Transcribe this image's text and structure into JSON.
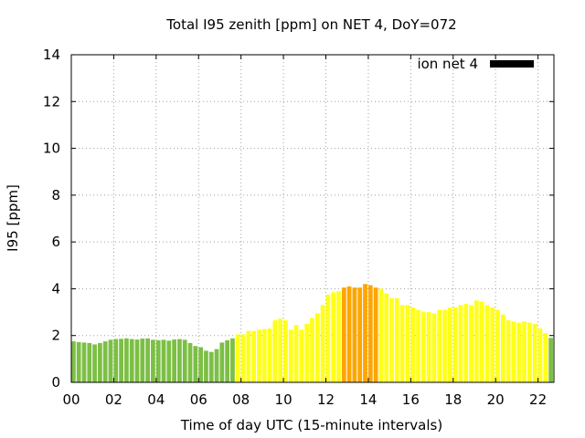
{
  "chart_data": {
    "type": "bar",
    "title": "Total I95 zenith [ppm] on NET 4, DoY=072",
    "xlabel": "Time of day UTC (15-minute intervals)",
    "ylabel": "I95 [ppm]",
    "xlim": [
      0,
      22.75
    ],
    "ylim": [
      0,
      14
    ],
    "x_ticks": [
      {
        "v": 0,
        "label": "00"
      },
      {
        "v": 2,
        "label": "02"
      },
      {
        "v": 4,
        "label": "04"
      },
      {
        "v": 6,
        "label": "06"
      },
      {
        "v": 8,
        "label": "08"
      },
      {
        "v": 10,
        "label": "10"
      },
      {
        "v": 12,
        "label": "12"
      },
      {
        "v": 14,
        "label": "14"
      },
      {
        "v": 16,
        "label": "16"
      },
      {
        "v": 18,
        "label": "18"
      },
      {
        "v": 20,
        "label": "20"
      },
      {
        "v": 22,
        "label": "22"
      }
    ],
    "y_ticks": [
      {
        "v": 0,
        "label": "0"
      },
      {
        "v": 2,
        "label": "2"
      },
      {
        "v": 4,
        "label": "4"
      },
      {
        "v": 6,
        "label": "6"
      },
      {
        "v": 8,
        "label": "8"
      },
      {
        "v": 10,
        "label": "10"
      },
      {
        "v": 12,
        "label": "12"
      },
      {
        "v": 14,
        "label": "14"
      }
    ],
    "grid": true,
    "legend": {
      "position": "top-right",
      "entries": [
        {
          "label": "ion net 4",
          "color": "#000000"
        }
      ]
    },
    "color_classes": {
      "green": "#7cbf45",
      "yellow": "#ffff1a",
      "orange": "#ffa500"
    },
    "bar_interval_hours": 0.25,
    "series": [
      {
        "name": "ion net 4",
        "values": [
          [
            0.0,
            1.75,
            "green"
          ],
          [
            0.25,
            1.72,
            "green"
          ],
          [
            0.5,
            1.7,
            "green"
          ],
          [
            0.75,
            1.68,
            "green"
          ],
          [
            1.0,
            1.62,
            "green"
          ],
          [
            1.25,
            1.68,
            "green"
          ],
          [
            1.5,
            1.75,
            "green"
          ],
          [
            1.75,
            1.82,
            "green"
          ],
          [
            2.0,
            1.85,
            "green"
          ],
          [
            2.25,
            1.86,
            "green"
          ],
          [
            2.5,
            1.88,
            "green"
          ],
          [
            2.75,
            1.85,
            "green"
          ],
          [
            3.0,
            1.83,
            "green"
          ],
          [
            3.25,
            1.87,
            "green"
          ],
          [
            3.5,
            1.88,
            "green"
          ],
          [
            3.75,
            1.82,
            "green"
          ],
          [
            4.0,
            1.8,
            "green"
          ],
          [
            4.25,
            1.82,
            "green"
          ],
          [
            4.5,
            1.78,
            "green"
          ],
          [
            4.75,
            1.83,
            "green"
          ],
          [
            5.0,
            1.85,
            "green"
          ],
          [
            5.25,
            1.82,
            "green"
          ],
          [
            5.5,
            1.68,
            "green"
          ],
          [
            5.75,
            1.55,
            "green"
          ],
          [
            6.0,
            1.5,
            "green"
          ],
          [
            6.25,
            1.35,
            "green"
          ],
          [
            6.5,
            1.3,
            "green"
          ],
          [
            6.75,
            1.42,
            "green"
          ],
          [
            7.0,
            1.7,
            "green"
          ],
          [
            7.25,
            1.8,
            "green"
          ],
          [
            7.5,
            1.88,
            "green"
          ],
          [
            7.75,
            2.05,
            "yellow"
          ],
          [
            8.0,
            2.05,
            "yellow"
          ],
          [
            8.25,
            2.2,
            "yellow"
          ],
          [
            8.5,
            2.2,
            "yellow"
          ],
          [
            8.75,
            2.25,
            "yellow"
          ],
          [
            9.0,
            2.28,
            "yellow"
          ],
          [
            9.25,
            2.3,
            "yellow"
          ],
          [
            9.5,
            2.65,
            "yellow"
          ],
          [
            9.75,
            2.72,
            "yellow"
          ],
          [
            10.0,
            2.65,
            "yellow"
          ],
          [
            10.25,
            2.25,
            "yellow"
          ],
          [
            10.5,
            2.45,
            "yellow"
          ],
          [
            10.75,
            2.25,
            "yellow"
          ],
          [
            11.0,
            2.5,
            "yellow"
          ],
          [
            11.25,
            2.75,
            "yellow"
          ],
          [
            11.5,
            2.95,
            "yellow"
          ],
          [
            11.75,
            3.3,
            "yellow"
          ],
          [
            12.0,
            3.75,
            "yellow"
          ],
          [
            12.25,
            3.85,
            "yellow"
          ],
          [
            12.5,
            3.9,
            "yellow"
          ],
          [
            12.75,
            4.05,
            "orange"
          ],
          [
            13.0,
            4.1,
            "orange"
          ],
          [
            13.25,
            4.05,
            "orange"
          ],
          [
            13.5,
            4.05,
            "orange"
          ],
          [
            13.75,
            4.2,
            "orange"
          ],
          [
            14.0,
            4.15,
            "orange"
          ],
          [
            14.25,
            4.05,
            "orange"
          ],
          [
            14.5,
            4.0,
            "yellow"
          ],
          [
            14.75,
            3.8,
            "yellow"
          ],
          [
            15.0,
            3.6,
            "yellow"
          ],
          [
            15.25,
            3.6,
            "yellow"
          ],
          [
            15.5,
            3.3,
            "yellow"
          ],
          [
            15.75,
            3.3,
            "yellow"
          ],
          [
            16.0,
            3.2,
            "yellow"
          ],
          [
            16.25,
            3.1,
            "yellow"
          ],
          [
            16.5,
            3.0,
            "yellow"
          ],
          [
            16.75,
            3.0,
            "yellow"
          ],
          [
            17.0,
            2.95,
            "yellow"
          ],
          [
            17.25,
            3.1,
            "yellow"
          ],
          [
            17.5,
            3.1,
            "yellow"
          ],
          [
            17.75,
            3.2,
            "yellow"
          ],
          [
            18.0,
            3.2,
            "yellow"
          ],
          [
            18.25,
            3.3,
            "yellow"
          ],
          [
            18.5,
            3.35,
            "yellow"
          ],
          [
            18.75,
            3.3,
            "yellow"
          ],
          [
            19.0,
            3.5,
            "yellow"
          ],
          [
            19.25,
            3.45,
            "yellow"
          ],
          [
            19.5,
            3.3,
            "yellow"
          ],
          [
            19.75,
            3.2,
            "yellow"
          ],
          [
            20.0,
            3.1,
            "yellow"
          ],
          [
            20.25,
            2.9,
            "yellow"
          ],
          [
            20.5,
            2.65,
            "yellow"
          ],
          [
            20.75,
            2.6,
            "yellow"
          ],
          [
            21.0,
            2.55,
            "yellow"
          ],
          [
            21.25,
            2.6,
            "yellow"
          ],
          [
            21.5,
            2.55,
            "yellow"
          ],
          [
            21.75,
            2.5,
            "yellow"
          ],
          [
            22.0,
            2.3,
            "yellow"
          ],
          [
            22.25,
            2.1,
            "yellow"
          ],
          [
            22.5,
            1.9,
            "green"
          ]
        ]
      }
    ]
  }
}
